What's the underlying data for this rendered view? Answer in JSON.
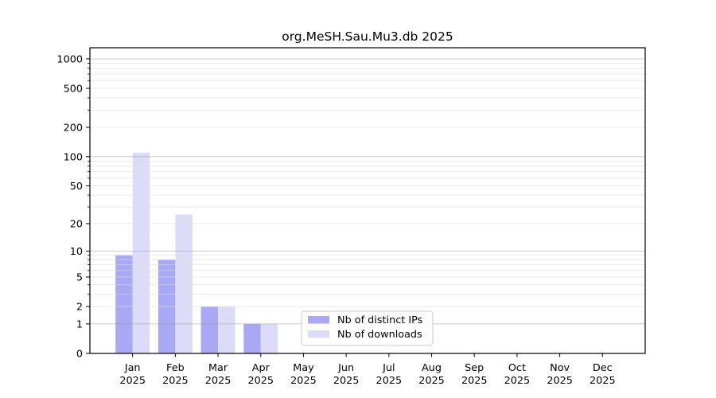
{
  "chart_data": {
    "type": "bar",
    "title": "org.MeSH.Sau.Mu3.db 2025",
    "categories": [
      "Jan",
      "Feb",
      "Mar",
      "Apr",
      "May",
      "Jun",
      "Jul",
      "Aug",
      "Sep",
      "Oct",
      "Nov",
      "Dec"
    ],
    "category_year": "2025",
    "series": [
      {
        "name": "Nb of distinct IPs",
        "color": "#a8a8f4",
        "values": [
          9,
          8,
          2,
          1,
          0,
          0,
          0,
          0,
          0,
          0,
          0,
          0
        ]
      },
      {
        "name": "Nb of downloads",
        "color": "#dcdcf8",
        "values": [
          110,
          25,
          2,
          1,
          0,
          0,
          0,
          0,
          0,
          0,
          0,
          0
        ]
      }
    ],
    "yscale": "log1p",
    "xlabel": "",
    "ylabel": "",
    "yticks": [
      0,
      1,
      2,
      5,
      10,
      20,
      50,
      100,
      200,
      500,
      1000
    ],
    "ytick_labels": [
      "0",
      "1",
      "2",
      "5",
      "10",
      "20",
      "50",
      "100",
      "200",
      "500",
      "1000"
    ],
    "ylim": [
      0,
      1250
    ],
    "grid": true,
    "legend": {
      "position": "inside-bottom-center",
      "entries": [
        "Nb of distinct IPs",
        "Nb of downloads"
      ]
    }
  },
  "colors": {
    "background": "#ffffff",
    "spine": "#000000",
    "major_grid": "#9a9a9a",
    "minor_grid": "#dcdcdc",
    "legend_border": "#c9c9c9",
    "legend_background": "#ffffff",
    "text": "#000000"
  }
}
